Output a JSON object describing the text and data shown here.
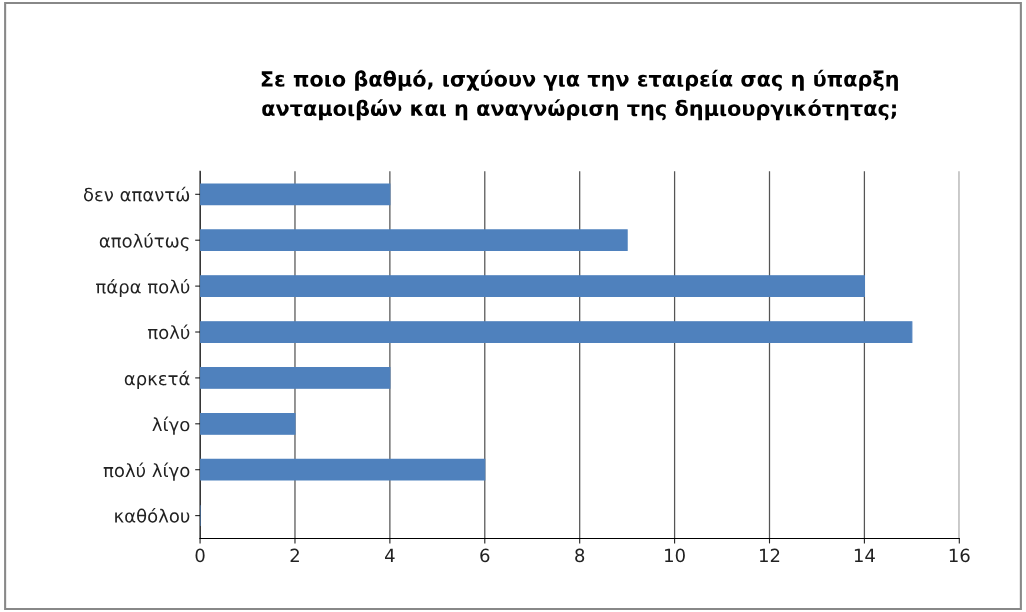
{
  "chart_data": {
    "type": "bar",
    "orientation": "horizontal",
    "title": "Σε ποιο βαθμό, ισχύουν για την εταιρεία σας η ύπαρξη\nανταμοιβών και η αναγνώριση της δημιουργικότητας;",
    "categories": [
      "δεν απαντώ",
      "απολύτως",
      "πάρα πολύ",
      "πολύ",
      "αρκετά",
      "λίγο",
      "πολύ λίγο",
      "καθόλου"
    ],
    "values": [
      4,
      9,
      14,
      15,
      4,
      2,
      6,
      0
    ],
    "color": "#4f81bd",
    "xlim": [
      0,
      16
    ],
    "xticks": [
      0,
      2,
      4,
      6,
      8,
      10,
      12,
      14,
      16
    ],
    "grid": "x",
    "legend": false
  }
}
